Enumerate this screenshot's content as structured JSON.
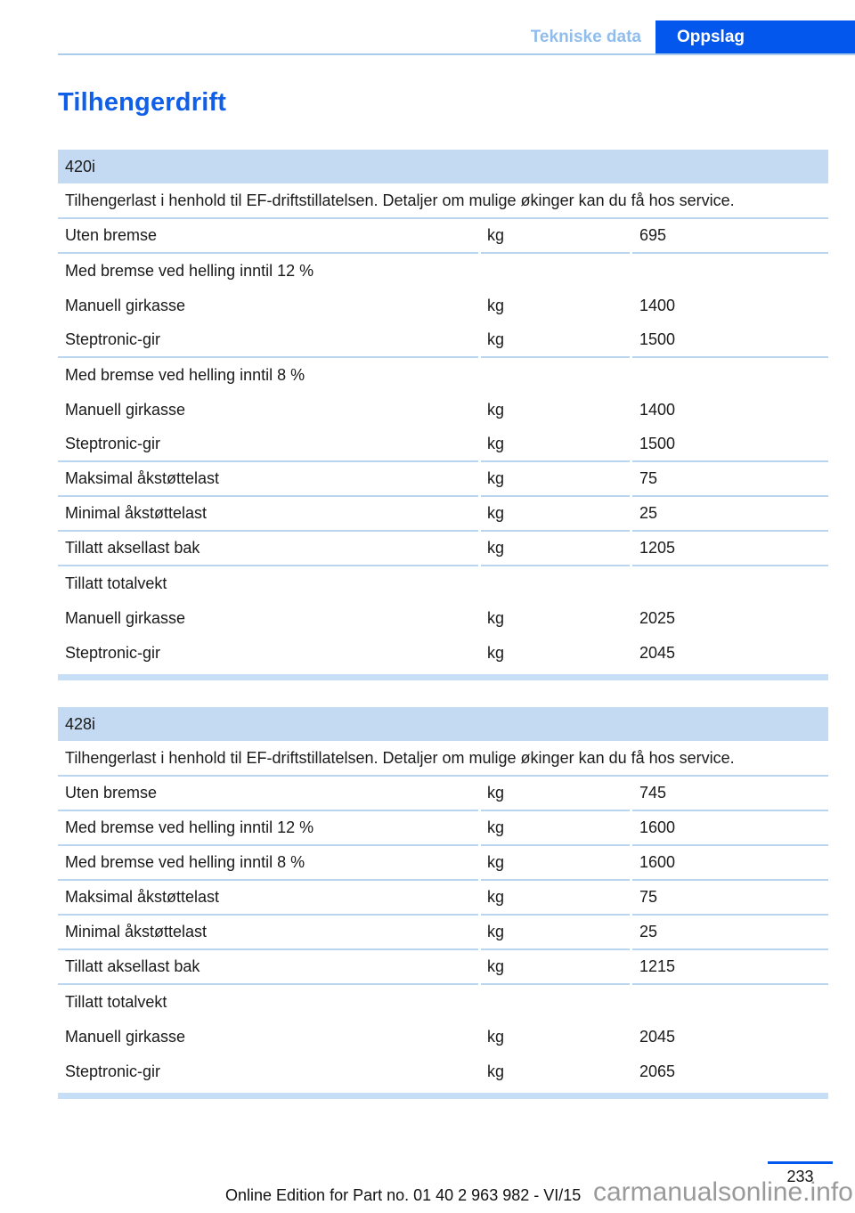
{
  "header": {
    "tabs": [
      {
        "label": "Tekniske data",
        "active": false
      },
      {
        "label": "Oppslag",
        "active": true
      }
    ]
  },
  "title": "Tilhengerdrift",
  "tables": [
    {
      "model": "420i",
      "intro": "Tilhengerlast i henhold til EF-driftstillatelsen. Detaljer om mulige økinger kan du få hos service.",
      "rows": [
        {
          "type": "data",
          "label": "Uten bremse",
          "unit": "kg",
          "value": "695",
          "divider": true
        },
        {
          "type": "section",
          "label": "Med bremse ved helling inntil 12 %",
          "divider": false
        },
        {
          "type": "data",
          "label": "Manuell girkasse",
          "unit": "kg",
          "value": "1400",
          "divider": false
        },
        {
          "type": "data",
          "label": "Steptronic-gir",
          "unit": "kg",
          "value": "1500",
          "divider": true
        },
        {
          "type": "section",
          "label": "Med bremse ved helling inntil 8 %",
          "divider": false
        },
        {
          "type": "data",
          "label": "Manuell girkasse",
          "unit": "kg",
          "value": "1400",
          "divider": false
        },
        {
          "type": "data",
          "label": "Steptronic-gir",
          "unit": "kg",
          "value": "1500",
          "divider": true
        },
        {
          "type": "data",
          "label": "Maksimal åkstøttelast",
          "unit": "kg",
          "value": "75",
          "divider": true
        },
        {
          "type": "data",
          "label": "Minimal åkstøttelast",
          "unit": "kg",
          "value": "25",
          "divider": true
        },
        {
          "type": "data",
          "label": "Tillatt aksellast bak",
          "unit": "kg",
          "value": "1205",
          "divider": true
        },
        {
          "type": "section",
          "label": "Tillatt totalvekt",
          "divider": false
        },
        {
          "type": "data",
          "label": "Manuell girkasse",
          "unit": "kg",
          "value": "2025",
          "divider": false
        },
        {
          "type": "data",
          "label": "Steptronic-gir",
          "unit": "kg",
          "value": "2045",
          "divider": false
        }
      ]
    },
    {
      "model": "428i",
      "intro": "Tilhengerlast i henhold til EF-driftstillatelsen. Detaljer om mulige økinger kan du få hos service.",
      "rows": [
        {
          "type": "data",
          "label": "Uten bremse",
          "unit": "kg",
          "value": "745",
          "divider": true
        },
        {
          "type": "data",
          "label": "Med bremse ved helling inntil 12 %",
          "unit": "kg",
          "value": "1600",
          "divider": true
        },
        {
          "type": "data",
          "label": "Med bremse ved helling inntil 8 %",
          "unit": "kg",
          "value": "1600",
          "divider": true
        },
        {
          "type": "data",
          "label": "Maksimal åkstøttelast",
          "unit": "kg",
          "value": "75",
          "divider": true
        },
        {
          "type": "data",
          "label": "Minimal åkstøttelast",
          "unit": "kg",
          "value": "25",
          "divider": true
        },
        {
          "type": "data",
          "label": "Tillatt aksellast bak",
          "unit": "kg",
          "value": "1215",
          "divider": true
        },
        {
          "type": "section",
          "label": "Tillatt totalvekt",
          "divider": false
        },
        {
          "type": "data",
          "label": "Manuell girkasse",
          "unit": "kg",
          "value": "2045",
          "divider": false
        },
        {
          "type": "data",
          "label": "Steptronic-gir",
          "unit": "kg",
          "value": "2065",
          "divider": false
        }
      ]
    }
  ],
  "footer": {
    "page_number": "233",
    "edition_text": "Online Edition for Part no. 01 40 2 963 982 - VI/15",
    "watermark": "carmanualsonline.info"
  },
  "colors": {
    "accent": "#0357ec",
    "title_blue": "#0f5fe8",
    "tab_inactive_text": "#90bdeb",
    "rule": "#a9cbec",
    "thead_bg": "#c3daf2",
    "divider": "#bad5f0",
    "bar": "#c7dff6",
    "watermark_gray": "#9a9a9a"
  }
}
